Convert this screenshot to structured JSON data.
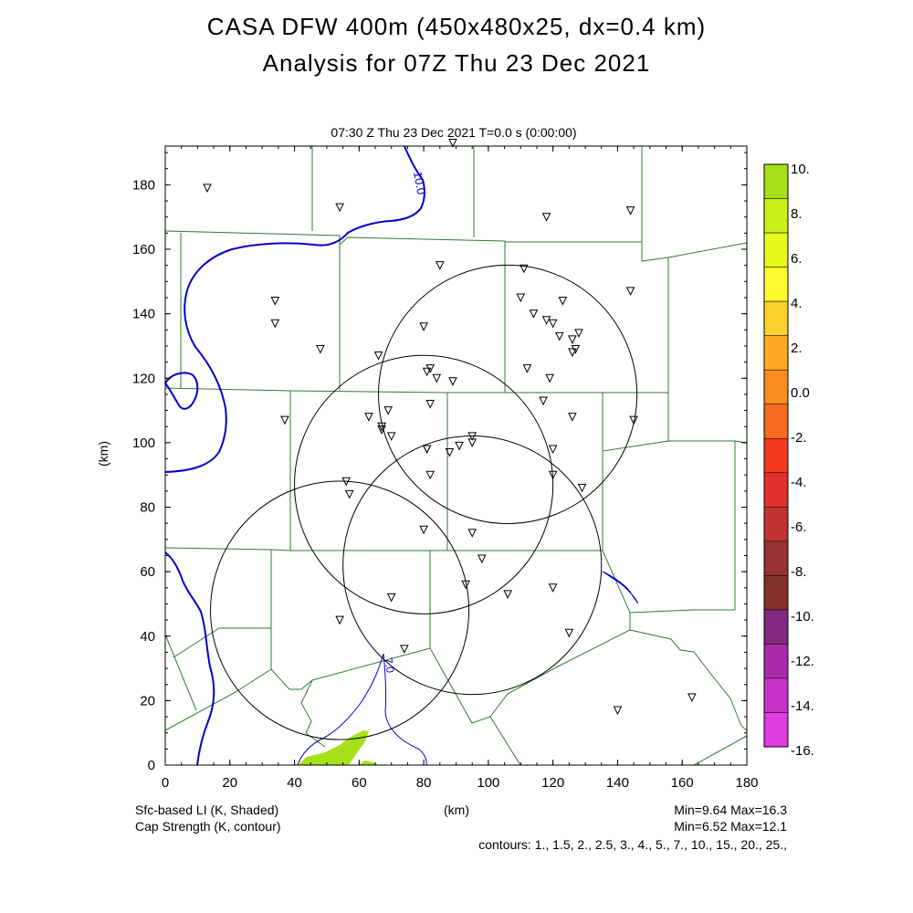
{
  "title_line1": "CASA DFW 400m (450x480x25, dx=0.4 km)",
  "title_line2": "Analysis for 07Z Thu 23 Dec 2021",
  "subtitle": "07:30 Z Thu 23 Dec 2021    T=0.0 s (0:00:00)",
  "x_axis": {
    "label": "(km)",
    "min": 0,
    "max": 180,
    "ticks": [
      0,
      20,
      40,
      60,
      80,
      100,
      120,
      140,
      160,
      180
    ]
  },
  "y_axis": {
    "label": "(km)",
    "min": 0,
    "max": 192,
    "ticks": [
      0,
      20,
      40,
      60,
      80,
      100,
      120,
      140,
      160,
      180
    ]
  },
  "colorbar": {
    "labels": [
      "10.",
      "8.",
      "6.",
      "4.",
      "2.",
      "0.0",
      "-2.",
      "-4.",
      "-6.",
      "-8.",
      "-10.",
      "-12.",
      "-14.",
      "-16."
    ],
    "colors": [
      "#a6e019",
      "#c8f019",
      "#e6fa1e",
      "#fffa2d",
      "#fcd12b",
      "#fcab22",
      "#fa8c1e",
      "#f56a1e",
      "#f23a1e",
      "#e0302d",
      "#c03232",
      "#963232",
      "#823228",
      "#802a80",
      "#a82ca8",
      "#c831c8",
      "#e03ce0"
    ]
  },
  "contour_labels": {
    "cap_a": "10.0",
    "cap_b": "7.0"
  },
  "radar_circles_km": [
    {
      "cx": 106,
      "cy": 115,
      "r": 40
    },
    {
      "cx": 80,
      "cy": 87,
      "r": 40
    },
    {
      "cx": 95,
      "cy": 62,
      "r": 40
    },
    {
      "cx": 54,
      "cy": 48,
      "r": 40
    }
  ],
  "stations_km": [
    [
      13,
      179
    ],
    [
      54,
      173
    ],
    [
      89,
      193
    ],
    [
      118,
      170
    ],
    [
      144,
      172
    ],
    [
      85,
      155
    ],
    [
      111,
      154
    ],
    [
      144,
      147
    ],
    [
      34,
      144
    ],
    [
      110,
      145
    ],
    [
      123,
      144
    ],
    [
      114,
      140
    ],
    [
      34,
      137
    ],
    [
      80,
      136
    ],
    [
      118,
      138
    ],
    [
      120,
      137
    ],
    [
      128,
      134
    ],
    [
      126,
      132
    ],
    [
      122,
      133
    ],
    [
      48,
      129
    ],
    [
      127,
      129
    ],
    [
      66,
      127
    ],
    [
      126,
      128
    ],
    [
      112,
      123
    ],
    [
      82,
      123
    ],
    [
      81,
      122
    ],
    [
      84,
      120
    ],
    [
      89,
      119
    ],
    [
      119,
      120
    ],
    [
      82,
      112
    ],
    [
      117,
      113
    ],
    [
      69,
      110
    ],
    [
      37,
      107
    ],
    [
      63,
      108
    ],
    [
      126,
      108
    ],
    [
      145,
      107
    ],
    [
      67,
      105
    ],
    [
      67,
      104
    ],
    [
      70,
      102
    ],
    [
      95,
      102
    ],
    [
      95,
      100
    ],
    [
      91,
      99
    ],
    [
      81,
      98
    ],
    [
      81,
      98
    ],
    [
      88,
      97
    ],
    [
      120,
      98
    ],
    [
      82,
      90
    ],
    [
      120,
      90
    ],
    [
      56,
      88
    ],
    [
      129,
      86
    ],
    [
      57,
      84
    ],
    [
      80,
      73
    ],
    [
      95,
      72
    ],
    [
      98,
      64
    ],
    [
      93,
      56
    ],
    [
      70,
      52
    ],
    [
      106,
      53
    ],
    [
      120,
      55
    ],
    [
      54,
      45
    ],
    [
      125,
      41
    ],
    [
      74,
      36
    ],
    [
      140,
      17
    ],
    [
      163,
      21
    ]
  ],
  "legend": {
    "left1": "Sfc-based LI (K, Shaded)",
    "left2": "Cap Strength (K, contour)",
    "center": "(km)",
    "right1": "Min=9.64  Max=16.3",
    "right2": "Min=6.52  Max=12.1",
    "contours": "contours: 1., 1.5, 2., 2.5, 3., 4., 5., 7., 10., 15., 20., 25.,"
  }
}
